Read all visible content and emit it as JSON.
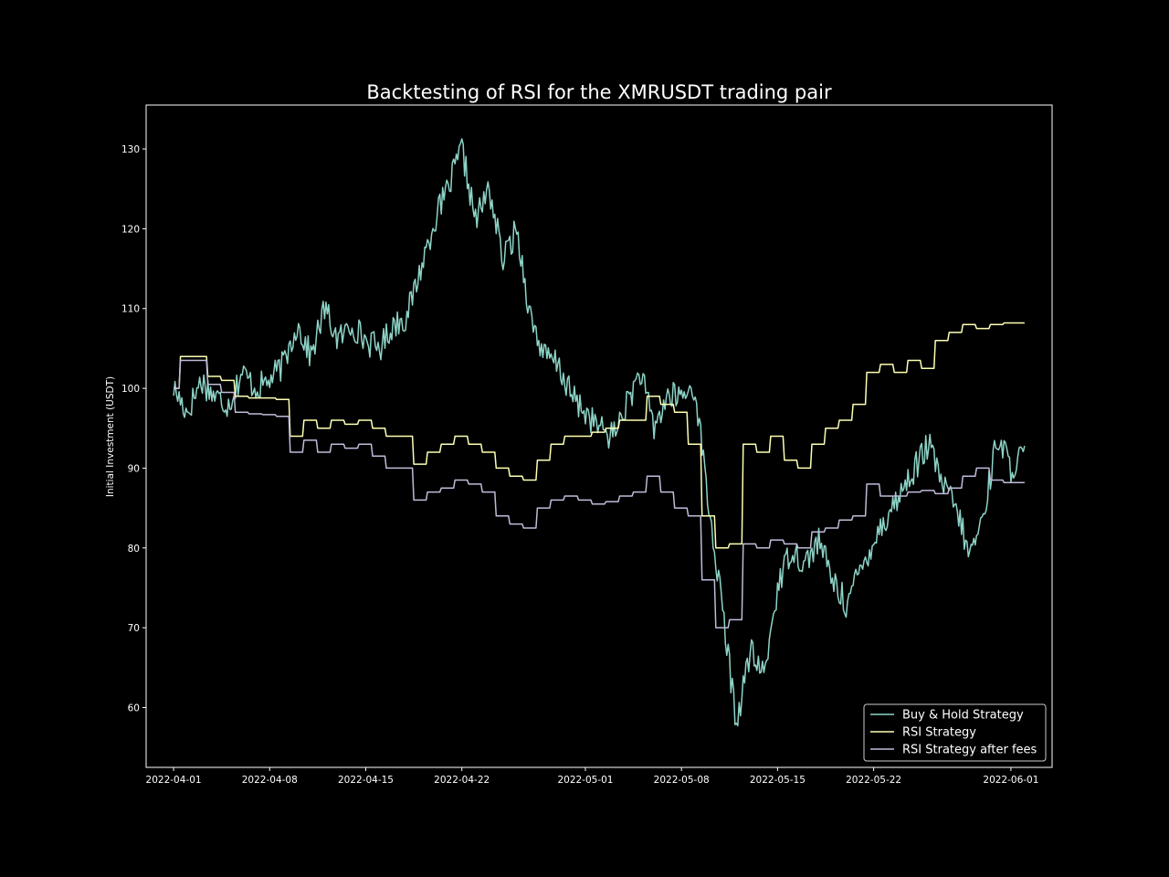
{
  "chart_data": {
    "type": "line",
    "title": "Backtesting of RSI for the XMRUSDT trading pair",
    "xlabel": "",
    "ylabel": "Initial Investment (USDT)",
    "xlim": [
      "2022-03-30",
      "2022-06-04"
    ],
    "ylim": [
      52.5,
      135.5
    ],
    "x_ticks": [
      "2022-04-01",
      "2022-04-08",
      "2022-04-15",
      "2022-04-22",
      "2022-05-01",
      "2022-05-08",
      "2022-05-15",
      "2022-05-22",
      "2022-06-01"
    ],
    "y_ticks": [
      60,
      70,
      80,
      90,
      100,
      110,
      120,
      130
    ],
    "grid": false,
    "legend_position": "lower-right",
    "colors": {
      "background": "#000000",
      "axes": "#ffffff",
      "buy_hold": "#8dd3c7",
      "rsi": "#feffb3",
      "rsi_fees": "#bfbbd9"
    },
    "series": [
      {
        "name": "Buy & Hold Strategy",
        "color": "#8dd3c7",
        "x": [
          "2022-04-01",
          "2022-04-02",
          "2022-04-03",
          "2022-04-04",
          "2022-04-05",
          "2022-04-06",
          "2022-04-07",
          "2022-04-08",
          "2022-04-09",
          "2022-04-10",
          "2022-04-11",
          "2022-04-12",
          "2022-04-13",
          "2022-04-14",
          "2022-04-15",
          "2022-04-16",
          "2022-04-17",
          "2022-04-18",
          "2022-04-19",
          "2022-04-20",
          "2022-04-21",
          "2022-04-22",
          "2022-04-23",
          "2022-04-24",
          "2022-04-25",
          "2022-04-26",
          "2022-04-27",
          "2022-04-28",
          "2022-04-29",
          "2022-04-30",
          "2022-05-01",
          "2022-05-02",
          "2022-05-03",
          "2022-05-04",
          "2022-05-05",
          "2022-05-06",
          "2022-05-07",
          "2022-05-08",
          "2022-05-09",
          "2022-05-10",
          "2022-05-11",
          "2022-05-12",
          "2022-05-13",
          "2022-05-14",
          "2022-05-15",
          "2022-05-16",
          "2022-05-17",
          "2022-05-18",
          "2022-05-19",
          "2022-05-20",
          "2022-05-21",
          "2022-05-22",
          "2022-05-23",
          "2022-05-24",
          "2022-05-25",
          "2022-05-26",
          "2022-05-27",
          "2022-05-28",
          "2022-05-29",
          "2022-05-30",
          "2022-05-31",
          "2022-06-01",
          "2022-06-02"
        ],
        "values": [
          100,
          97,
          101,
          99,
          98,
          102,
          100,
          101,
          103,
          108,
          104,
          110,
          106,
          108,
          106,
          105,
          108,
          109,
          115,
          121,
          125,
          130,
          121,
          125,
          116,
          120,
          109,
          104,
          103,
          99,
          97,
          95,
          94,
          98,
          102,
          95,
          99,
          99,
          100,
          85,
          72,
          58,
          67,
          64,
          75,
          80,
          78,
          81,
          76,
          73,
          77,
          81,
          84,
          87,
          90,
          93,
          88,
          85,
          79,
          84,
          94,
          90,
          92
        ]
      },
      {
        "name": "RSI Strategy",
        "color": "#feffb3",
        "x": [
          "2022-04-01",
          "2022-04-02",
          "2022-04-03",
          "2022-04-04",
          "2022-04-05",
          "2022-04-06",
          "2022-04-07",
          "2022-04-08",
          "2022-04-09",
          "2022-04-10",
          "2022-04-11",
          "2022-04-12",
          "2022-04-13",
          "2022-04-14",
          "2022-04-15",
          "2022-04-16",
          "2022-04-17",
          "2022-04-18",
          "2022-04-19",
          "2022-04-20",
          "2022-04-21",
          "2022-04-22",
          "2022-04-23",
          "2022-04-24",
          "2022-04-25",
          "2022-04-26",
          "2022-04-27",
          "2022-04-28",
          "2022-04-29",
          "2022-04-30",
          "2022-05-01",
          "2022-05-02",
          "2022-05-03",
          "2022-05-04",
          "2022-05-05",
          "2022-05-06",
          "2022-05-07",
          "2022-05-08",
          "2022-05-09",
          "2022-05-10",
          "2022-05-11",
          "2022-05-12",
          "2022-05-13",
          "2022-05-14",
          "2022-05-15",
          "2022-05-16",
          "2022-05-17",
          "2022-05-18",
          "2022-05-19",
          "2022-05-20",
          "2022-05-21",
          "2022-05-22",
          "2022-05-23",
          "2022-05-24",
          "2022-05-25",
          "2022-05-26",
          "2022-05-27",
          "2022-05-28",
          "2022-05-29",
          "2022-05-30",
          "2022-05-31",
          "2022-06-01",
          "2022-06-02"
        ],
        "values": [
          100,
          104,
          104,
          101.5,
          101,
          99,
          98.8,
          98.8,
          98.6,
          94,
          96,
          95,
          96,
          95.5,
          96,
          95,
          94,
          94,
          90.5,
          92,
          93,
          94,
          93,
          92,
          90,
          89,
          88.5,
          91,
          93,
          94,
          94,
          94.5,
          95,
          96,
          96,
          99,
          98,
          97,
          93,
          84,
          80,
          80.5,
          93,
          92,
          94,
          91,
          90,
          93,
          95,
          96,
          98,
          102,
          103,
          102,
          103.5,
          102.5,
          106,
          107,
          108,
          107.5,
          108,
          108.2,
          108.2
        ]
      },
      {
        "name": "RSI Strategy after fees",
        "color": "#bfbbd9",
        "x": [
          "2022-04-01",
          "2022-04-02",
          "2022-04-03",
          "2022-04-04",
          "2022-04-05",
          "2022-04-06",
          "2022-04-07",
          "2022-04-08",
          "2022-04-09",
          "2022-04-10",
          "2022-04-11",
          "2022-04-12",
          "2022-04-13",
          "2022-04-14",
          "2022-04-15",
          "2022-04-16",
          "2022-04-17",
          "2022-04-18",
          "2022-04-19",
          "2022-04-20",
          "2022-04-21",
          "2022-04-22",
          "2022-04-23",
          "2022-04-24",
          "2022-04-25",
          "2022-04-26",
          "2022-04-27",
          "2022-04-28",
          "2022-04-29",
          "2022-04-30",
          "2022-05-01",
          "2022-05-02",
          "2022-05-03",
          "2022-05-04",
          "2022-05-05",
          "2022-05-06",
          "2022-05-07",
          "2022-05-08",
          "2022-05-09",
          "2022-05-10",
          "2022-05-11",
          "2022-05-12",
          "2022-05-13",
          "2022-05-14",
          "2022-05-15",
          "2022-05-16",
          "2022-05-17",
          "2022-05-18",
          "2022-05-19",
          "2022-05-20",
          "2022-05-21",
          "2022-05-22",
          "2022-05-23",
          "2022-05-24",
          "2022-05-25",
          "2022-05-26",
          "2022-05-27",
          "2022-05-28",
          "2022-05-29",
          "2022-05-30",
          "2022-05-31",
          "2022-06-01",
          "2022-06-02"
        ],
        "values": [
          100,
          103.5,
          103.5,
          100.5,
          99.5,
          97,
          96.8,
          96.7,
          96.5,
          92,
          93.5,
          92,
          93,
          92.5,
          93,
          91.5,
          90,
          90,
          86,
          87,
          87.5,
          88.5,
          88,
          87,
          84,
          83,
          82.5,
          85,
          86,
          86.5,
          86,
          85.5,
          85.8,
          86.5,
          87,
          89,
          87,
          85,
          84,
          76,
          70,
          71,
          80.5,
          80,
          81,
          80.5,
          80,
          82,
          82.5,
          83.5,
          84,
          88,
          86.5,
          86.5,
          87,
          87.2,
          86.8,
          87.5,
          89,
          90,
          88.5,
          88.2,
          88.2
        ]
      }
    ]
  }
}
